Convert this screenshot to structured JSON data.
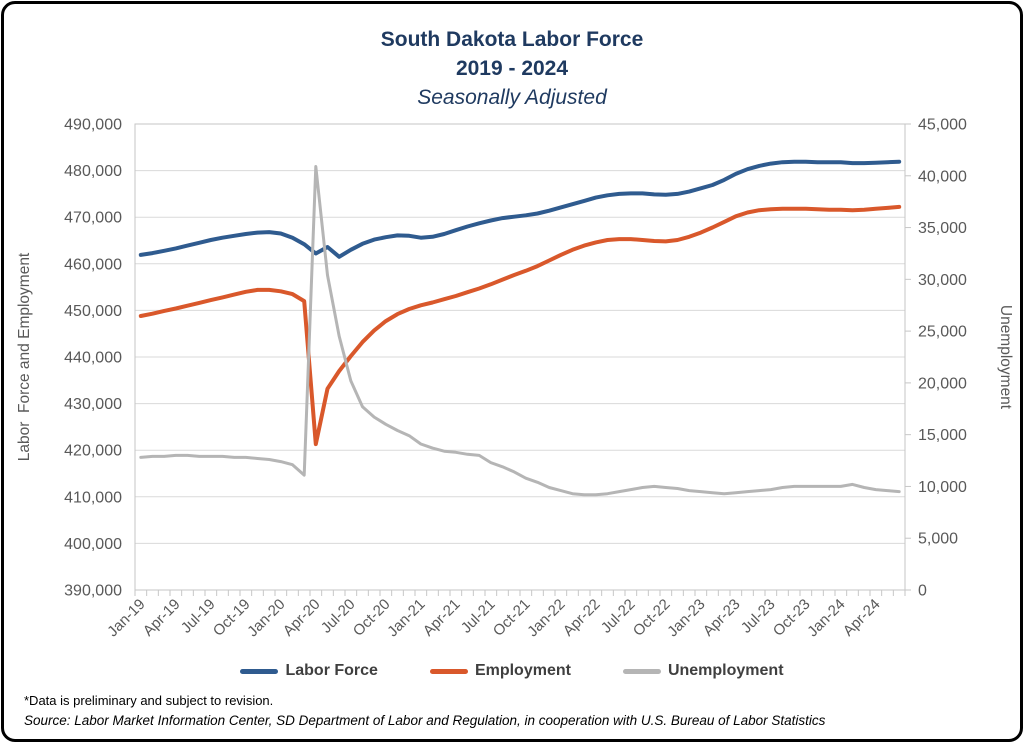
{
  "title": {
    "line1": "South Dakota Labor Force",
    "line2": "2019 - 2024",
    "subtitle": "Seasonally Adjusted"
  },
  "footnotes": {
    "note": "*Data is preliminary and subject to revision.",
    "source": "Source: Labor Market Information Center, SD Department of Labor and Regulation, in cooperation with U.S. Bureau of Labor Statistics"
  },
  "colors": {
    "labor_force": "#2f5b8f",
    "employment": "#d9582b",
    "unemployment": "#b5b5b5",
    "title_text": "#1f3a60",
    "axis_text": "#595959",
    "legend_text": "#3f3f3f",
    "gridline": "#dadada",
    "plot_border": "#c6c6c6",
    "outer_border": "#000000"
  },
  "chart_data": {
    "type": "line",
    "title": "South Dakota Labor Force 2019 - 2024",
    "subtitle": "Seasonally Adjusted",
    "grid": "horizontal",
    "legend_position": "bottom",
    "x": [
      "Jan-19",
      "Feb-19",
      "Mar-19",
      "Apr-19",
      "May-19",
      "Jun-19",
      "Jul-19",
      "Aug-19",
      "Sep-19",
      "Oct-19",
      "Nov-19",
      "Dec-19",
      "Jan-20",
      "Feb-20",
      "Mar-20",
      "Apr-20",
      "May-20",
      "Jun-20",
      "Jul-20",
      "Aug-20",
      "Sep-20",
      "Oct-20",
      "Nov-20",
      "Dec-20",
      "Jan-21",
      "Feb-21",
      "Mar-21",
      "Apr-21",
      "May-21",
      "Jun-21",
      "Jul-21",
      "Aug-21",
      "Sep-21",
      "Oct-21",
      "Nov-21",
      "Dec-21",
      "Jan-22",
      "Feb-22",
      "Mar-22",
      "Apr-22",
      "May-22",
      "Jun-22",
      "Jul-22",
      "Aug-22",
      "Sep-22",
      "Oct-22",
      "Nov-22",
      "Dec-22",
      "Jan-23",
      "Feb-23",
      "Mar-23",
      "Apr-23",
      "May-23",
      "Jun-23",
      "Jul-23",
      "Aug-23",
      "Sep-23",
      "Oct-23",
      "Nov-23",
      "Dec-23",
      "Jan-24",
      "Feb-24",
      "Mar-24",
      "Apr-24",
      "May-24",
      "Jun-24"
    ],
    "x_label_every": 3,
    "left_axis": {
      "label": "Labor  Force and Employment",
      "min": 390000,
      "max": 490000,
      "step": 10000
    },
    "right_axis": {
      "label": "Unemployment",
      "min": 0,
      "max": 45000,
      "step": 5000
    },
    "series": [
      {
        "name": "Labor Force",
        "axis": "left",
        "color": "#2f5b8f",
        "values": [
          461900,
          462300,
          462800,
          463300,
          463900,
          464500,
          465100,
          465600,
          466000,
          466400,
          466700,
          466800,
          466500,
          465600,
          464200,
          462200,
          463600,
          461500,
          463000,
          464300,
          465200,
          465700,
          466100,
          466000,
          465600,
          465800,
          466400,
          467200,
          468000,
          468700,
          469300,
          469800,
          470100,
          470400,
          470800,
          471400,
          472100,
          472800,
          473500,
          474200,
          474700,
          475000,
          475100,
          475100,
          474900,
          474800,
          475000,
          475500,
          476200,
          476900,
          478000,
          479300,
          480300,
          481000,
          481500,
          481800,
          481900,
          481900,
          481800,
          481800,
          481800,
          481600,
          481600,
          481700,
          481800,
          481900
        ]
      },
      {
        "name": "Employment",
        "axis": "left",
        "color": "#d9582b",
        "values": [
          448800,
          449300,
          449900,
          450400,
          451000,
          451600,
          452200,
          452800,
          453400,
          454000,
          454400,
          454400,
          454100,
          453500,
          452000,
          421300,
          433200,
          437000,
          440200,
          443200,
          445700,
          447700,
          449200,
          450300,
          451100,
          451700,
          452400,
          453100,
          453900,
          454700,
          455600,
          456600,
          457600,
          458500,
          459500,
          460700,
          461900,
          463000,
          463900,
          464600,
          465100,
          465300,
          465300,
          465100,
          464900,
          464800,
          465100,
          465800,
          466700,
          467800,
          469000,
          470200,
          471000,
          471500,
          471700,
          471800,
          471800,
          471800,
          471700,
          471600,
          471600,
          471500,
          471600,
          471800,
          472000,
          472200
        ]
      },
      {
        "name": "Unemployment",
        "axis": "right",
        "color": "#b5b5b5",
        "values": [
          12800,
          12900,
          12900,
          13000,
          13000,
          12900,
          12900,
          12900,
          12800,
          12800,
          12700,
          12600,
          12400,
          12100,
          11100,
          40900,
          30400,
          24500,
          20200,
          17700,
          16700,
          16000,
          15400,
          14900,
          14100,
          13700,
          13400,
          13300,
          13100,
          13000,
          12300,
          11900,
          11400,
          10800,
          10400,
          9900,
          9600,
          9300,
          9200,
          9200,
          9300,
          9500,
          9700,
          9900,
          10000,
          9900,
          9800,
          9600,
          9500,
          9400,
          9300,
          9400,
          9500,
          9600,
          9700,
          9900,
          10000,
          10000,
          10000,
          10000,
          10000,
          10200,
          9900,
          9700,
          9600,
          9500
        ]
      }
    ]
  }
}
